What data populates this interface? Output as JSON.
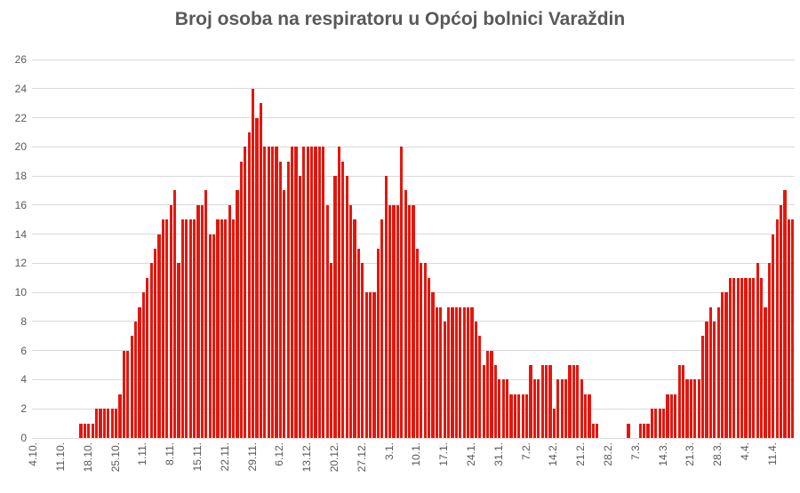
{
  "title": "Broj osoba na respiratoru u Općoj bolnici Varaždin",
  "colors": {
    "bar": "#e3170d",
    "gridline": "#d9d9d9",
    "text": "#595959",
    "background": "#ffffff"
  },
  "chart_data": {
    "type": "bar",
    "title": "Broj osoba na respiratoru u Općoj bolnici Varaždin",
    "xlabel": "",
    "ylabel": "",
    "ylim": [
      0,
      26
    ],
    "y_ticks": [
      0,
      2,
      4,
      6,
      8,
      10,
      12,
      14,
      16,
      18,
      20,
      22,
      24,
      26
    ],
    "grid": true,
    "legend": false,
    "n_bars": 195,
    "x_tick_every": 7,
    "x_tick_labels": [
      "4.10.",
      "11.10.",
      "18.10.",
      "25.10.",
      "1.11.",
      "8.11.",
      "15.11.",
      "22.11.",
      "29.11.",
      "6.12.",
      "13.12.",
      "20.12.",
      "27.12.",
      "3.1.",
      "10.1.",
      "17.1.",
      "24.1.",
      "31.1.",
      "7.2.",
      "14.2.",
      "21.2.",
      "28.2.",
      "7.3.",
      "14.3.",
      "21.3.",
      "28.3.",
      "4.4.",
      "11.4."
    ],
    "x_tick_indices": [
      0,
      7,
      14,
      21,
      28,
      35,
      42,
      49,
      56,
      63,
      70,
      77,
      84,
      91,
      98,
      105,
      112,
      119,
      126,
      133,
      140,
      147,
      154,
      161,
      168,
      175,
      182,
      189
    ],
    "values": [
      0,
      0,
      0,
      0,
      0,
      0,
      0,
      0,
      0,
      0,
      0,
      0,
      1,
      1,
      1,
      1,
      2,
      2,
      2,
      2,
      2,
      2,
      3,
      6,
      6,
      7,
      8,
      9,
      10,
      11,
      12,
      13,
      14,
      15,
      15,
      16,
      17,
      12,
      15,
      15,
      15,
      15,
      16,
      16,
      17,
      14,
      14,
      15,
      15,
      15,
      16,
      15,
      17,
      19,
      20,
      21,
      24,
      22,
      23,
      20,
      20,
      20,
      20,
      19,
      17,
      19,
      20,
      20,
      18,
      20,
      20,
      20,
      20,
      20,
      20,
      16,
      12,
      18,
      20,
      19,
      18,
      16,
      15,
      13,
      12,
      10,
      10,
      10,
      13,
      15,
      18,
      16,
      16,
      16,
      20,
      17,
      16,
      16,
      13,
      12,
      12,
      11,
      10,
      9,
      9,
      8,
      9,
      9,
      9,
      9,
      9,
      9,
      9,
      8,
      7,
      5,
      6,
      6,
      5,
      4,
      4,
      4,
      3,
      3,
      3,
      3,
      3,
      5,
      4,
      4,
      5,
      5,
      5,
      2,
      4,
      4,
      4,
      5,
      5,
      5,
      4,
      3,
      3,
      1,
      1,
      0,
      0,
      0,
      0,
      0,
      0,
      0,
      1,
      0,
      0,
      1,
      1,
      1,
      2,
      2,
      2,
      2,
      3,
      3,
      3,
      5,
      5,
      4,
      4,
      4,
      4,
      7,
      8,
      9,
      8,
      9,
      10,
      10,
      11,
      11,
      11,
      11,
      11,
      11,
      11,
      12,
      11,
      9,
      12,
      14,
      15,
      16,
      17,
      15,
      15
    ]
  }
}
